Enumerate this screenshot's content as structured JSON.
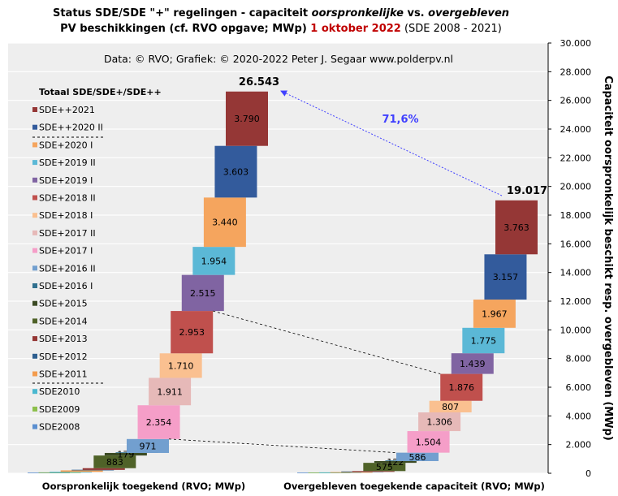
{
  "chart_data": {
    "type": "bar",
    "title": {
      "line1_a": "Status SDE/SDE  \"+\" regelingen - capaciteit ",
      "line1_b": "oorspronkelijke",
      "line1_c": "  vs. ",
      "line1_d": "overgebleven",
      "line2_a": "PV beschikkingen  (cf. RVO opgave; MWp) ",
      "line2_b": "1 oktober 2022",
      "line2_c": " (SDE 2008 - 2021)"
    },
    "credit": "Data: © RVO;  Grafiek:  © 2020-2022 Peter J. Segaar www.polderpv.nl",
    "ylabel": "Capaciteit  oorspronkelijk  beschikt  resp.  overgebleven  (MWp)",
    "ylim": [
      0,
      30000
    ],
    "y_ticks": [
      "0",
      "2.000",
      "4.000",
      "6.000",
      "8.000",
      "10.000",
      "12.000",
      "14.000",
      "16.000",
      "18.000",
      "20.000",
      "22.000",
      "24.000",
      "26.000",
      "28.000",
      "30.000"
    ],
    "grid": true,
    "categories": [
      "Oorspronkelijk toegekend (RVO; MWp)",
      "Overgebleven toegekende capaciteit (RVO; MWp)"
    ],
    "legend_title": "Totaal SDE/SDE+/SDE++",
    "legend_order": [
      "SDE++2021",
      "SDE++2020 II",
      "SDE+2020 I",
      "SDE+2019 II",
      "SDE+2019 I",
      "SDE+2018 II",
      "SDE+2018 I",
      "SDE+2017 II",
      "SDE+2017 I",
      "SDE+2016 II",
      "SDE+2016 I",
      "SDE+2015",
      "SDE+2014",
      "SDE+2013",
      "SDE+2012",
      "SDE+2011",
      "SDE2010",
      "SDE2009",
      "SDE2008"
    ],
    "series": [
      {
        "name": "SDE2008",
        "color": "#5b8fd0",
        "original": 20,
        "remaining": 8
      },
      {
        "name": "SDE2009",
        "color": "#8cbf4b",
        "original": 30,
        "remaining": 10
      },
      {
        "name": "SDE2010",
        "color": "#4ab8d0",
        "original": 50,
        "remaining": 20
      },
      {
        "name": "SDE+2011",
        "color": "#f39c4e",
        "original": 100,
        "remaining": 45
      },
      {
        "name": "SDE+2012",
        "color": "#2d5e8f",
        "original": 35,
        "remaining": 15
      },
      {
        "name": "SDE+2013",
        "color": "#943634",
        "original": 120,
        "remaining": 55
      },
      {
        "name": "SDE+2014",
        "color": "#4f6228",
        "original": 883,
        "remaining": 575
      },
      {
        "name": "SDE+2015",
        "color": "#3c4b24",
        "original": 179,
        "remaining": 122
      },
      {
        "name": "SDE+2016 I",
        "color": "#31708f",
        "original": 0,
        "remaining": 0
      },
      {
        "name": "SDE+2016 II",
        "color": "#729fcf",
        "original": 971,
        "remaining": 586
      },
      {
        "name": "SDE+2017 I",
        "color": "#f59ec8",
        "original": 2354,
        "remaining": 1504
      },
      {
        "name": "SDE+2017 II",
        "color": "#e6b9b8",
        "original": 1911,
        "remaining": 1306
      },
      {
        "name": "SDE+2018 I",
        "color": "#fac090",
        "original": 1710,
        "remaining": 807
      },
      {
        "name": "SDE+2018 II",
        "color": "#c0504d",
        "original": 2953,
        "remaining": 1876
      },
      {
        "name": "SDE+2019 I",
        "color": "#8064a2",
        "original": 2515,
        "remaining": 1439
      },
      {
        "name": "SDE+2019 II",
        "color": "#5bb8d6",
        "original": 1954,
        "remaining": 1775
      },
      {
        "name": "SDE+2020 I",
        "color": "#f5a55e",
        "original": 3440,
        "remaining": 1967
      },
      {
        "name": "SDE++2020 II",
        "color": "#335b9c",
        "original": 3603,
        "remaining": 3157
      },
      {
        "name": "SDE++2021",
        "color": "#953736",
        "original": 3790,
        "remaining": 3763
      }
    ],
    "data_labels": {
      "original": {
        "SDE+2014": "883",
        "SDE+2015": "179",
        "SDE+2016 II": "971",
        "SDE+2017 I": "2.354",
        "SDE+2017 II": "1.911",
        "SDE+2018 I": "1.710",
        "SDE+2018 II": "2.953",
        "SDE+2019 I": "2.515",
        "SDE+2019 II": "1.954",
        "SDE+2020 I": "3.440",
        "SDE++2020 II": "3.603",
        "SDE++2021": "3.790"
      },
      "remaining": {
        "SDE+2014": "575",
        "SDE+2015": "122",
        "SDE+2016 II": "586",
        "SDE+2017 I": "1.504",
        "SDE+2017 II": "1.306",
        "SDE+2018 I": "807",
        "SDE+2018 II": "1.876",
        "SDE+2019 I": "1.439",
        "SDE+2019 II": "1.775",
        "SDE+2020 I": "1.967",
        "SDE++2020 II": "3.157",
        "SDE++2021": "3.763"
      }
    },
    "total_original": 26543,
    "total_original_label": "26.543",
    "total_remaining": 19017,
    "total_remaining_label": "19.017",
    "percentage_label": "71,6%",
    "colors": {
      "plot_bg": "#eeeeee",
      "grid": "#ffffff",
      "title_red": "#c00000",
      "arrow": "#4040ff"
    }
  }
}
